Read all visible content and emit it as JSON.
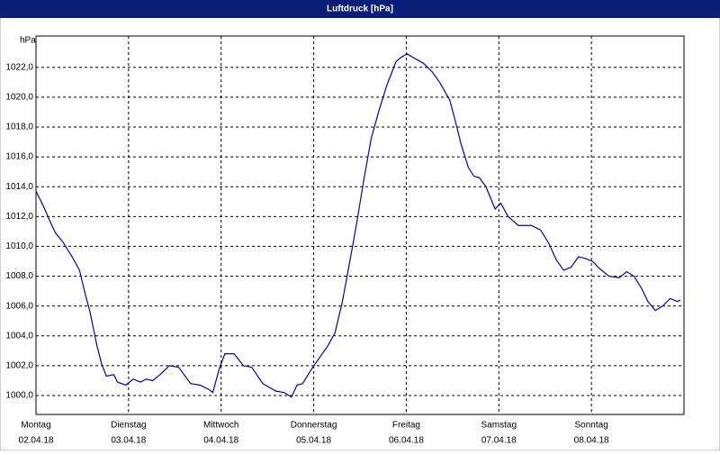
{
  "chart_data": {
    "type": "line",
    "title": "Luftdruck [hPa]",
    "y_unit_label": "hPa",
    "color": "#0000c8",
    "grid": true,
    "xlim": [
      0,
      7
    ],
    "ylim": [
      998.73,
      1024.1
    ],
    "xticks": [
      {
        "value": 0,
        "label": "Montag"
      },
      {
        "value": 1,
        "label": "Dienstag"
      },
      {
        "value": 2,
        "label": "Mittwoch"
      },
      {
        "value": 3,
        "label": "Donnerstag"
      },
      {
        "value": 4,
        "label": "Freitag"
      },
      {
        "value": 5,
        "label": "Samstag"
      },
      {
        "value": 6,
        "label": "Sonntag"
      }
    ],
    "xtick_dates": [
      "02.04.18",
      "03.04.18",
      "04.04.18",
      "05.04.18",
      "06.04.18",
      "07.04.18",
      "08.04.18"
    ],
    "yticks": [
      {
        "value": 1000,
        "label": "1000,0"
      },
      {
        "value": 1002,
        "label": "1002,0"
      },
      {
        "value": 1004,
        "label": "1004,0"
      },
      {
        "value": 1006,
        "label": "1006,0"
      },
      {
        "value": 1008,
        "label": "1008,0"
      },
      {
        "value": 1010,
        "label": "1010,0"
      },
      {
        "value": 1012,
        "label": "1012,0"
      },
      {
        "value": 1014,
        "label": "1014,0"
      },
      {
        "value": 1016,
        "label": "1016,0"
      },
      {
        "value": 1018,
        "label": "1018,0"
      },
      {
        "value": 1020,
        "label": "1020,0"
      },
      {
        "value": 1022,
        "label": "1022,0"
      }
    ],
    "x": [
      0,
      0.08,
      0.15,
      0.21,
      0.29,
      0.39,
      0.47,
      0.54,
      0.58,
      0.66,
      0.71,
      0.76,
      0.84,
      0.88,
      0.97,
      1.05,
      1.13,
      1.19,
      1.26,
      1.34,
      1.44,
      1.54,
      1.67,
      1.77,
      1.87,
      1.91,
      1.98,
      2.04,
      2.14,
      2.24,
      2.33,
      2.45,
      2.59,
      2.68,
      2.76,
      2.82,
      2.88,
      2.98,
      3.07,
      3.15,
      3.23,
      3.31,
      3.39,
      3.46,
      3.54,
      3.62,
      3.7,
      3.79,
      3.89,
      3.95,
      4.01,
      4.09,
      4.18,
      4.28,
      4.36,
      4.47,
      4.53,
      4.59,
      4.67,
      4.73,
      4.79,
      4.86,
      4.96,
      5.02,
      5.1,
      5.21,
      5.35,
      5.45,
      5.54,
      5.62,
      5.7,
      5.78,
      5.86,
      5.93,
      6.01,
      6.09,
      6.19,
      6.3,
      6.38,
      6.46,
      6.54,
      6.61,
      6.69,
      6.77,
      6.85,
      6.93,
      6.96
    ],
    "values": [
      1013.7,
      1012.7,
      1011.7,
      1010.9,
      1010.3,
      1009.3,
      1008.4,
      1006.6,
      1005.7,
      1003.3,
      1002.1,
      1001.3,
      1001.4,
      1000.9,
      1000.7,
      1001.1,
      1000.9,
      1001.1,
      1001.0,
      1001.4,
      1002.0,
      1001.9,
      1000.8,
      1000.7,
      1000.4,
      1000.2,
      1001.8,
      1002.8,
      1002.8,
      1002.0,
      1001.9,
      1000.8,
      1000.3,
      1000.2,
      999.9,
      1000.7,
      1000.8,
      1001.8,
      1002.6,
      1003.3,
      1004.2,
      1006.3,
      1009.0,
      1011.4,
      1014.4,
      1017.2,
      1019.0,
      1020.8,
      1022.4,
      1022.7,
      1022.9,
      1022.6,
      1022.3,
      1021.7,
      1021.0,
      1019.8,
      1018.4,
      1016.9,
      1015.3,
      1014.7,
      1014.6,
      1014.0,
      1012.5,
      1012.9,
      1012.0,
      1011.4,
      1011.4,
      1011.1,
      1010.2,
      1009.1,
      1008.4,
      1008.6,
      1009.3,
      1009.2,
      1009.0,
      1008.5,
      1008.0,
      1007.9,
      1008.3,
      1008.0,
      1007.2,
      1006.3,
      1005.7,
      1006.0,
      1006.5,
      1006.3,
      1006.4
    ]
  }
}
